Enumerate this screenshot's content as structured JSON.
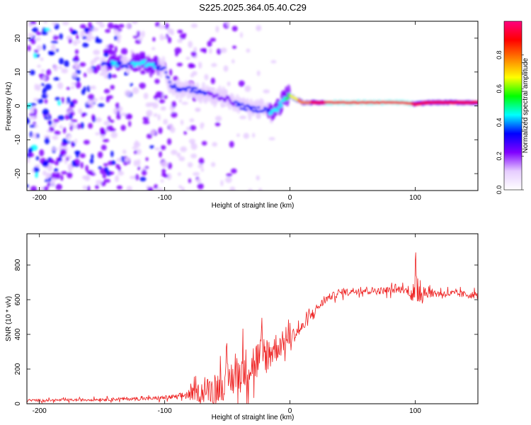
{
  "figure": {
    "title": "S225.2025.364.05.40.C29"
  },
  "chart_data": [
    {
      "type": "heatmap",
      "xlabel": "Height of straight line (km)",
      "ylabel": "Frequency (Hz)",
      "xlim": [
        -210,
        150
      ],
      "ylim": [
        -25,
        25
      ],
      "xticks": [
        -200,
        -100,
        0,
        100
      ],
      "yticks": [
        -20,
        -10,
        0,
        10,
        20
      ],
      "colorbar": {
        "label": "Normalized spectral amplitude",
        "range": [
          0,
          1
        ],
        "ticks": [
          "0.0",
          "0.2",
          "0.4",
          "0.6",
          "0.8"
        ],
        "colormap": [
          "#ffffff",
          "#e6ccff",
          "#8000ff",
          "#0000ff",
          "#00ffff",
          "#00ff00",
          "#ffff00",
          "#ff8000",
          "#ff0000",
          "#ff0080"
        ]
      },
      "ridge": {
        "x": [
          -150,
          -140,
          -130,
          -120,
          -110,
          -100,
          -95,
          -90,
          -80,
          -70,
          -60,
          -50,
          -40,
          -30,
          -20,
          -15,
          -10,
          -5,
          0,
          5,
          10,
          20,
          50,
          90,
          100,
          110,
          150
        ],
        "frequency": [
          12,
          12.5,
          12,
          13,
          12,
          11,
          6,
          5,
          5,
          4,
          3,
          2,
          0,
          -1,
          -1,
          -2,
          -1,
          2,
          3,
          2,
          1,
          1,
          1,
          1,
          0.5,
          1,
          1
        ],
        "amplitude": [
          0.35,
          0.4,
          0.35,
          0.45,
          0.4,
          0.35,
          0.3,
          0.3,
          0.3,
          0.3,
          0.25,
          0.25,
          0.3,
          0.3,
          0.35,
          0.4,
          0.4,
          0.45,
          0.6,
          0.7,
          0.8,
          0.85,
          0.9,
          0.9,
          0.85,
          0.85,
          0.85
        ]
      }
    },
    {
      "type": "line",
      "xlabel": "Height of straight line (km)",
      "ylabel": "SNR (10 * v/v)",
      "xlim": [
        -210,
        150
      ],
      "ylim": [
        0,
        980
      ],
      "xticks": [
        -200,
        -100,
        0,
        100
      ],
      "yticks": [
        0,
        200,
        400,
        600,
        800
      ],
      "series": [
        {
          "color": "#ee2222",
          "x": [
            -210,
            -190,
            -170,
            -150,
            -130,
            -110,
            -100,
            -90,
            -80,
            -70,
            -60,
            -50,
            -40,
            -30,
            -20,
            -10,
            0,
            10,
            20,
            30,
            40,
            50,
            60,
            70,
            80,
            90,
            95,
            100,
            102,
            105,
            110,
            120,
            130,
            140,
            150
          ],
          "y": [
            20,
            20,
            22,
            25,
            28,
            30,
            35,
            40,
            55,
            70,
            90,
            130,
            180,
            230,
            280,
            330,
            380,
            440,
            540,
            610,
            640,
            650,
            655,
            650,
            655,
            660,
            645,
            620,
            700,
            650,
            640,
            635,
            635,
            630,
            625
          ],
          "spread": [
            10,
            10,
            10,
            12,
            14,
            15,
            18,
            22,
            45,
            90,
            120,
            150,
            170,
            180,
            170,
            120,
            70,
            50,
            40,
            30,
            30,
            30,
            30,
            30,
            30,
            30,
            30,
            140,
            220,
            120,
            40,
            30,
            30,
            30,
            30
          ]
        }
      ]
    }
  ]
}
